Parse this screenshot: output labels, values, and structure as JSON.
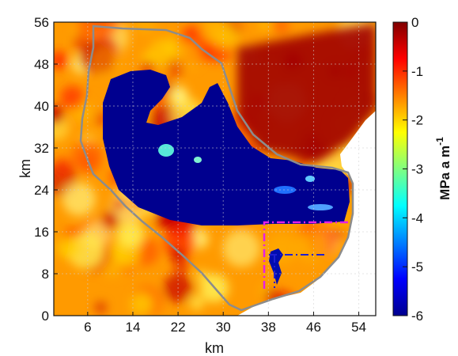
{
  "chart_data": {
    "type": "heatmap",
    "title": "",
    "xlabel": "km",
    "ylabel": "km",
    "xlim": [
      0,
      57
    ],
    "ylim": [
      0,
      56
    ],
    "xticks": [
      6,
      14,
      22,
      30,
      38,
      46,
      54
    ],
    "yticks": [
      0,
      8,
      16,
      24,
      32,
      40,
      48,
      56
    ],
    "xtick_labels": [
      "6",
      "14",
      "22",
      "30",
      "38",
      "46",
      "54"
    ],
    "ytick_labels": [
      "0",
      "8",
      "16",
      "24",
      "32",
      "40",
      "48",
      "56"
    ],
    "grid": true,
    "colormap": "jet",
    "colorbar": {
      "label": "MPa a m",
      "label_superscript": "-1",
      "range": [
        -6,
        0
      ],
      "ticks": [
        0,
        -1,
        -2,
        -3,
        -4,
        -5,
        -6
      ],
      "tick_labels": [
        "0",
        "-1",
        "-2",
        "-3",
        "-4",
        "-5",
        "-6"
      ]
    },
    "regions": {
      "dark_blue_low_value_zone": -6,
      "background_typical": -1.5,
      "northeast_high_zone": -0.3,
      "no_data_area": "white"
    },
    "outline_color": "#8c8c8c",
    "inset_box_colors": [
      "#e61ee6",
      "#1e1ed2"
    ]
  }
}
